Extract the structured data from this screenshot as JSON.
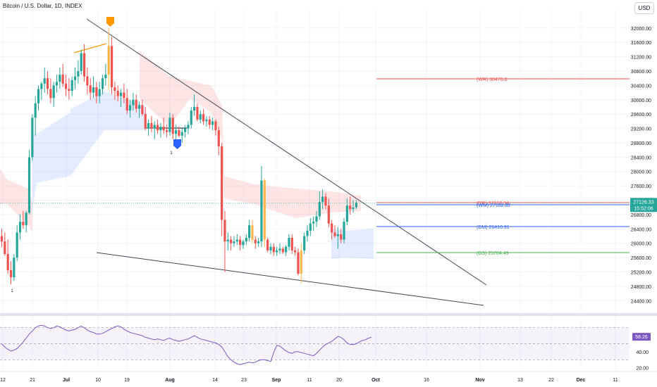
{
  "header": {
    "title": "Bitcoin / U.S. Dollar, 1D, INDEX",
    "currency": "USD"
  },
  "chart_data": [
    {
      "type": "candlestick",
      "title": "Bitcoin / U.S. Dollar, 1D, INDEX",
      "y_axis": {
        "ticks": [
          32000,
          31600,
          31200,
          30800,
          30400,
          30000,
          29600,
          29200,
          28800,
          28400,
          28000,
          27600,
          27200,
          26800,
          26400,
          26000,
          25600,
          25200,
          24800,
          24400
        ],
        "range": [
          24150,
          32350
        ]
      },
      "x_axis": {
        "ticks": [
          "12",
          "21",
          "Jul",
          "10",
          "19",
          "Aug",
          "14",
          "23",
          "Sep",
          "11",
          "20",
          "Oct",
          "16",
          "Nov",
          "13",
          "22",
          "Dec",
          "11"
        ]
      },
      "last_price": {
        "value": "27126.33",
        "countdown": "15:52:06",
        "color": "#26a69a"
      },
      "candle_colors": {
        "up": "#26a69a",
        "down": "#ef5350",
        "neutral": "#ffb74d"
      },
      "candles": [
        {
          "o": 26200,
          "h": 26400,
          "l": 25900,
          "c": 26050
        },
        {
          "o": 26050,
          "h": 26300,
          "l": 25650,
          "c": 25700
        },
        {
          "o": 25700,
          "h": 26100,
          "l": 25150,
          "c": 25250
        },
        {
          "o": 25250,
          "h": 25500,
          "l": 24850,
          "c": 25050
        },
        {
          "o": 25050,
          "h": 25700,
          "l": 24950,
          "c": 25600
        },
        {
          "o": 25600,
          "h": 26500,
          "l": 25500,
          "c": 26300
        },
        {
          "o": 26300,
          "h": 26800,
          "l": 26100,
          "c": 26600
        },
        {
          "o": 26600,
          "h": 26900,
          "l": 26400,
          "c": 26500
        },
        {
          "o": 26500,
          "h": 26900,
          "l": 26300,
          "c": 26850
        },
        {
          "o": 26850,
          "h": 28600,
          "l": 26800,
          "c": 28400
        },
        {
          "o": 28400,
          "h": 29600,
          "l": 28300,
          "c": 29500
        },
        {
          "o": 29500,
          "h": 30100,
          "l": 29000,
          "c": 29900
        },
        {
          "o": 29900,
          "h": 30400,
          "l": 29700,
          "c": 30300
        },
        {
          "o": 30300,
          "h": 30500,
          "l": 30000,
          "c": 30450
        },
        {
          "o": 30450,
          "h": 30900,
          "l": 30200,
          "c": 30600
        },
        {
          "o": 30600,
          "h": 30800,
          "l": 30150,
          "c": 30300
        },
        {
          "o": 30300,
          "h": 30600,
          "l": 29900,
          "c": 30050
        },
        {
          "o": 30050,
          "h": 30500,
          "l": 29800,
          "c": 30400
        },
        {
          "o": 30400,
          "h": 30700,
          "l": 30200,
          "c": 30500
        },
        {
          "o": 30500,
          "h": 30900,
          "l": 30300,
          "c": 30700
        },
        {
          "o": 30700,
          "h": 31000,
          "l": 30350,
          "c": 30450
        },
        {
          "o": 30450,
          "h": 30700,
          "l": 30100,
          "c": 30300
        },
        {
          "o": 30300,
          "h": 30600,
          "l": 30000,
          "c": 30250
        },
        {
          "o": 30250,
          "h": 30650,
          "l": 30100,
          "c": 30550
        },
        {
          "o": 30550,
          "h": 30900,
          "l": 30300,
          "c": 30650
        },
        {
          "o": 30650,
          "h": 31100,
          "l": 30450,
          "c": 30800
        },
        {
          "o": 30800,
          "h": 31400,
          "l": 30700,
          "c": 31300
        },
        {
          "o": 31300,
          "h": 31550,
          "l": 30500,
          "c": 30650
        },
        {
          "o": 30650,
          "h": 30900,
          "l": 30150,
          "c": 30400
        },
        {
          "o": 30400,
          "h": 30600,
          "l": 30000,
          "c": 30200
        },
        {
          "o": 30200,
          "h": 30650,
          "l": 30050,
          "c": 30350
        },
        {
          "o": 30350,
          "h": 30500,
          "l": 29900,
          "c": 30100
        },
        {
          "o": 30100,
          "h": 30500,
          "l": 29900,
          "c": 30300
        },
        {
          "o": 30300,
          "h": 30700,
          "l": 30150,
          "c": 30600
        },
        {
          "o": 30600,
          "h": 31000,
          "l": 30400,
          "c": 30700
        },
        {
          "o": 30700,
          "h": 32000,
          "l": 30300,
          "c": 31500
        },
        {
          "o": 31500,
          "h": 31750,
          "l": 30150,
          "c": 30350
        },
        {
          "o": 30350,
          "h": 30500,
          "l": 30000,
          "c": 30250
        },
        {
          "o": 30250,
          "h": 30400,
          "l": 29950,
          "c": 30100
        },
        {
          "o": 30100,
          "h": 30300,
          "l": 29800,
          "c": 30200
        },
        {
          "o": 30200,
          "h": 30450,
          "l": 29900,
          "c": 30050
        },
        {
          "o": 30050,
          "h": 30300,
          "l": 29600,
          "c": 29700
        },
        {
          "o": 29700,
          "h": 30000,
          "l": 29500,
          "c": 29850
        },
        {
          "o": 29850,
          "h": 30200,
          "l": 29700,
          "c": 30000
        },
        {
          "o": 30000,
          "h": 30150,
          "l": 29650,
          "c": 29750
        },
        {
          "o": 29750,
          "h": 29950,
          "l": 29500,
          "c": 29850
        },
        {
          "o": 29850,
          "h": 30000,
          "l": 29550,
          "c": 29600
        },
        {
          "o": 29600,
          "h": 29800,
          "l": 29150,
          "c": 29200
        },
        {
          "o": 29200,
          "h": 29450,
          "l": 29000,
          "c": 29350
        },
        {
          "o": 29350,
          "h": 29550,
          "l": 29100,
          "c": 29200
        },
        {
          "o": 29200,
          "h": 29400,
          "l": 28900,
          "c": 29300
        },
        {
          "o": 29300,
          "h": 29450,
          "l": 29050,
          "c": 29150
        },
        {
          "o": 29150,
          "h": 29350,
          "l": 28950,
          "c": 29250
        },
        {
          "o": 29250,
          "h": 29500,
          "l": 29050,
          "c": 29150
        },
        {
          "o": 29150,
          "h": 29300,
          "l": 28950,
          "c": 29100
        },
        {
          "o": 29100,
          "h": 29650,
          "l": 29000,
          "c": 29500
        },
        {
          "o": 29500,
          "h": 29600,
          "l": 28900,
          "c": 29050
        },
        {
          "o": 29050,
          "h": 29300,
          "l": 28900,
          "c": 29150
        },
        {
          "o": 29150,
          "h": 29250,
          "l": 28950,
          "c": 29000
        },
        {
          "o": 29000,
          "h": 29200,
          "l": 28800,
          "c": 29100
        },
        {
          "o": 29100,
          "h": 29300,
          "l": 28950,
          "c": 29200
        },
        {
          "o": 29200,
          "h": 29400,
          "l": 29050,
          "c": 29300
        },
        {
          "o": 29300,
          "h": 29800,
          "l": 29200,
          "c": 29700
        },
        {
          "o": 29700,
          "h": 30150,
          "l": 29550,
          "c": 29800
        },
        {
          "o": 29800,
          "h": 29900,
          "l": 29400,
          "c": 29450
        },
        {
          "o": 29450,
          "h": 29700,
          "l": 29350,
          "c": 29600
        },
        {
          "o": 29600,
          "h": 29750,
          "l": 29300,
          "c": 29400
        },
        {
          "o": 29400,
          "h": 29550,
          "l": 29250,
          "c": 29450
        },
        {
          "o": 29450,
          "h": 29550,
          "l": 29200,
          "c": 29300
        },
        {
          "o": 29300,
          "h": 29500,
          "l": 29150,
          "c": 29400
        },
        {
          "o": 29400,
          "h": 29450,
          "l": 29000,
          "c": 29150
        },
        {
          "o": 29150,
          "h": 29250,
          "l": 28450,
          "c": 28700
        },
        {
          "o": 28700,
          "h": 28800,
          "l": 26200,
          "c": 26650
        },
        {
          "o": 26650,
          "h": 26900,
          "l": 25200,
          "c": 26050
        },
        {
          "o": 26050,
          "h": 26300,
          "l": 25800,
          "c": 26100
        },
        {
          "o": 26100,
          "h": 26200,
          "l": 25800,
          "c": 26000
        },
        {
          "o": 26000,
          "h": 26200,
          "l": 25900,
          "c": 26050
        },
        {
          "o": 26050,
          "h": 26250,
          "l": 25950,
          "c": 26100
        },
        {
          "o": 26100,
          "h": 26200,
          "l": 25800,
          "c": 25950
        },
        {
          "o": 25950,
          "h": 26100,
          "l": 25850,
          "c": 26050
        },
        {
          "o": 26050,
          "h": 26250,
          "l": 25950,
          "c": 26150
        },
        {
          "o": 26150,
          "h": 26650,
          "l": 26050,
          "c": 26500
        },
        {
          "o": 26500,
          "h": 26650,
          "l": 26000,
          "c": 26100
        },
        {
          "o": 26100,
          "h": 26200,
          "l": 25850,
          "c": 26000
        },
        {
          "o": 26000,
          "h": 26150,
          "l": 25900,
          "c": 26050
        },
        {
          "o": 26050,
          "h": 28150,
          "l": 25900,
          "c": 27750
        },
        {
          "o": 27750,
          "h": 27800,
          "l": 25900,
          "c": 26100
        },
        {
          "o": 26100,
          "h": 26150,
          "l": 25750,
          "c": 25800
        },
        {
          "o": 25800,
          "h": 26000,
          "l": 25700,
          "c": 25900
        },
        {
          "o": 25900,
          "h": 26000,
          "l": 25650,
          "c": 25750
        },
        {
          "o": 25750,
          "h": 25900,
          "l": 25650,
          "c": 25800
        },
        {
          "o": 25800,
          "h": 26000,
          "l": 25700,
          "c": 25850
        },
        {
          "o": 25850,
          "h": 25900,
          "l": 25700,
          "c": 25750
        },
        {
          "o": 25750,
          "h": 25950,
          "l": 25650,
          "c": 25900
        },
        {
          "o": 25900,
          "h": 26250,
          "l": 25800,
          "c": 26150
        },
        {
          "o": 26150,
          "h": 26250,
          "l": 25700,
          "c": 25800
        },
        {
          "o": 25800,
          "h": 25900,
          "l": 25650,
          "c": 25750
        },
        {
          "o": 25750,
          "h": 25850,
          "l": 25100,
          "c": 25150
        },
        {
          "o": 25150,
          "h": 26000,
          "l": 24900,
          "c": 25800
        },
        {
          "o": 25800,
          "h": 26300,
          "l": 25700,
          "c": 26200
        },
        {
          "o": 26200,
          "h": 26500,
          "l": 26050,
          "c": 26350
        },
        {
          "o": 26350,
          "h": 26700,
          "l": 26200,
          "c": 26550
        },
        {
          "o": 26550,
          "h": 26750,
          "l": 26350,
          "c": 26600
        },
        {
          "o": 26600,
          "h": 26900,
          "l": 26450,
          "c": 26750
        },
        {
          "o": 26750,
          "h": 27450,
          "l": 26650,
          "c": 27150
        },
        {
          "o": 27150,
          "h": 27500,
          "l": 26950,
          "c": 27300
        },
        {
          "o": 27300,
          "h": 27400,
          "l": 26950,
          "c": 27050
        },
        {
          "o": 27050,
          "h": 27250,
          "l": 26450,
          "c": 26550
        },
        {
          "o": 26550,
          "h": 26650,
          "l": 26100,
          "c": 26300
        },
        {
          "o": 26300,
          "h": 26500,
          "l": 26150,
          "c": 26200
        },
        {
          "o": 26200,
          "h": 26450,
          "l": 25850,
          "c": 26250
        },
        {
          "o": 26250,
          "h": 26400,
          "l": 26000,
          "c": 26100
        },
        {
          "o": 26100,
          "h": 26700,
          "l": 26000,
          "c": 26600
        },
        {
          "o": 26600,
          "h": 27250,
          "l": 26500,
          "c": 27050
        },
        {
          "o": 27050,
          "h": 27300,
          "l": 26800,
          "c": 26950
        },
        {
          "o": 26950,
          "h": 27200,
          "l": 26850,
          "c": 27000
        },
        {
          "o": 27000,
          "h": 27200,
          "l": 26950,
          "c": 27126
        }
      ],
      "horizontal_levels": [
        {
          "label": "(WR)",
          "value": "30476.8",
          "color": "#ef5350"
        },
        {
          "label": "(DR)",
          "value": "27162.34",
          "color": "#ef5350"
        },
        {
          "label": "(WM)",
          "value": "27102.82",
          "color": "#2962ff"
        },
        {
          "label": "(DM)",
          "value": "26410.91",
          "color": "#2962ff"
        },
        {
          "label": "(DS)",
          "value": "25704.49",
          "color": "#4caf50"
        }
      ],
      "signal_labels": [
        "1"
      ]
    },
    {
      "type": "line",
      "title": "",
      "y_axis": {
        "ticks": [
          60,
          40,
          20
        ],
        "range": [
          18,
          82
        ]
      },
      "last_value": {
        "value": "58.26",
        "color": "#7e57c2"
      },
      "band": {
        "upper": 70,
        "middle": 50,
        "lower": 30
      },
      "series": [
        {
          "values": [
            50,
            46,
            43,
            41,
            42,
            44,
            48,
            52,
            57,
            62,
            66,
            70,
            72,
            73,
            72,
            70,
            69,
            70,
            72,
            71,
            69,
            67,
            66,
            67,
            68,
            70,
            72,
            70,
            67,
            65,
            64,
            62,
            62,
            63,
            65,
            67,
            69,
            71,
            72,
            71,
            68,
            66,
            64,
            63,
            62,
            61,
            60,
            58,
            57,
            56,
            55,
            56,
            55,
            54,
            56,
            57,
            55,
            54,
            53,
            54,
            55,
            56,
            58,
            60,
            58,
            56,
            55,
            54,
            53,
            52,
            51,
            49,
            46,
            40,
            34,
            30,
            27,
            25,
            24,
            25,
            26,
            27,
            26,
            27,
            29,
            30,
            30,
            29,
            28,
            39,
            48,
            47,
            44,
            41,
            39,
            38,
            40,
            40,
            39,
            38,
            37,
            36,
            35,
            38,
            42,
            46,
            49,
            51,
            53,
            56,
            59,
            58,
            55,
            51,
            49,
            49,
            50,
            52,
            54,
            55,
            57,
            58
          ]
        }
      ]
    }
  ]
}
